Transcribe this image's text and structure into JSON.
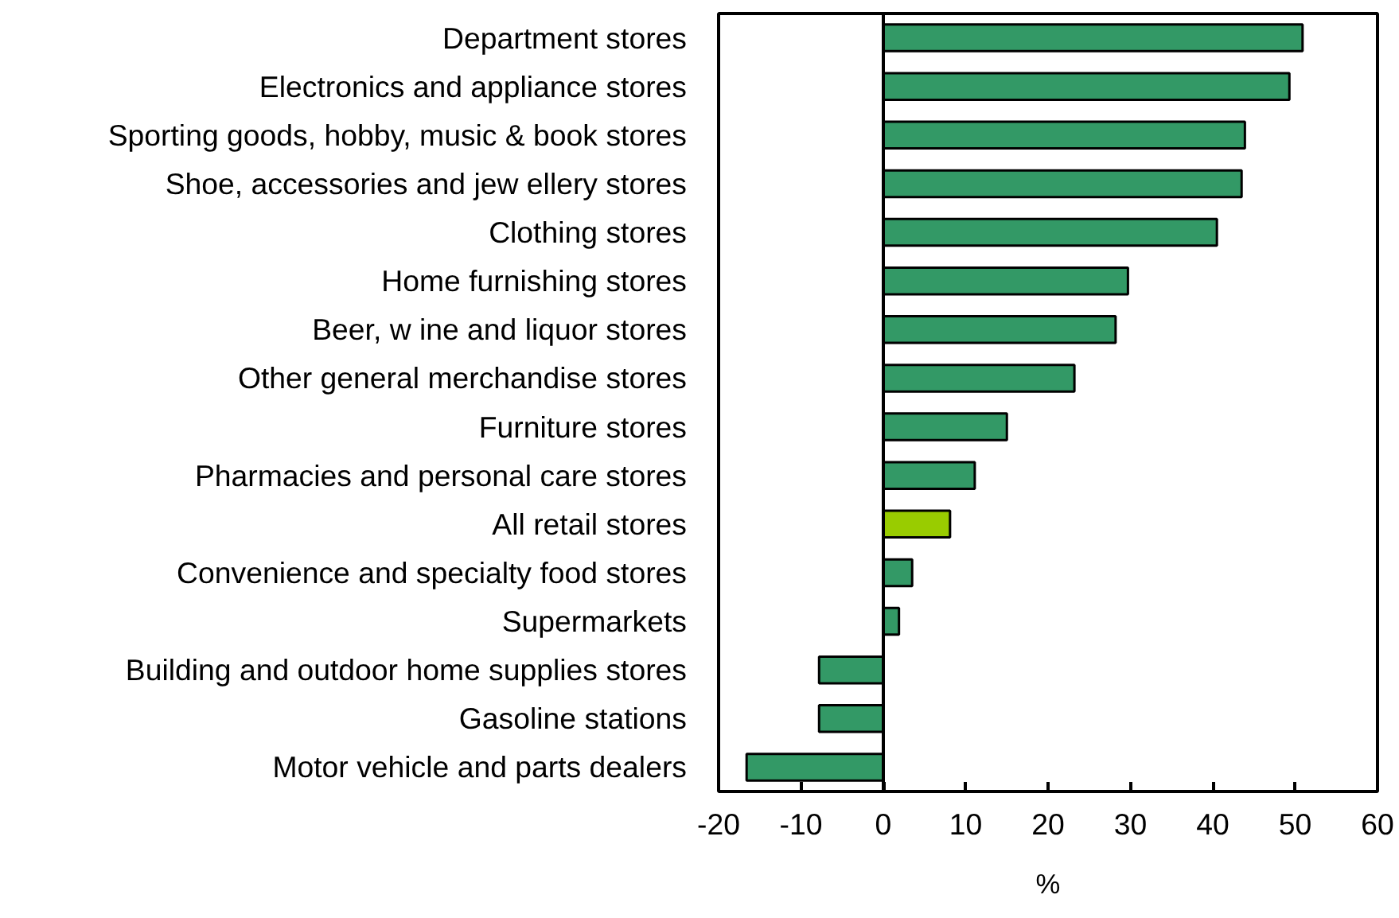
{
  "chart_data": {
    "type": "bar",
    "orientation": "horizontal",
    "xlabel": "%",
    "categories": [
      "Department stores",
      "Electronics and appliance stores",
      "Sporting goods, hobby, music & book stores",
      "Shoe, accessories and jew ellery stores",
      "Clothing stores",
      "Home furnishing stores",
      "Beer, w ine and liquor stores",
      "Other general merchandise stores",
      "Furniture stores",
      "Pharmacies and personal care stores",
      "All retail stores",
      "Convenience and specialty food stores",
      "Supermarkets",
      "Building and outdoor home supplies stores",
      "Gasoline stations",
      "Motor vehicle and parts dealers"
    ],
    "values": [
      50.9,
      49.3,
      43.9,
      43.5,
      40.5,
      29.7,
      28.2,
      23.2,
      15.0,
      11.1,
      8.1,
      3.5,
      1.9,
      -7.8,
      -7.8,
      -16.6
    ],
    "colors": [
      "#339966",
      "#339966",
      "#339966",
      "#339966",
      "#339966",
      "#339966",
      "#339966",
      "#339966",
      "#339966",
      "#339966",
      "#99cc00",
      "#339966",
      "#339966",
      "#339966",
      "#339966",
      "#339966"
    ],
    "xlim": [
      -20,
      60
    ],
    "xticks": [
      -20,
      -10,
      0,
      10,
      20,
      30,
      40,
      50,
      60
    ]
  }
}
